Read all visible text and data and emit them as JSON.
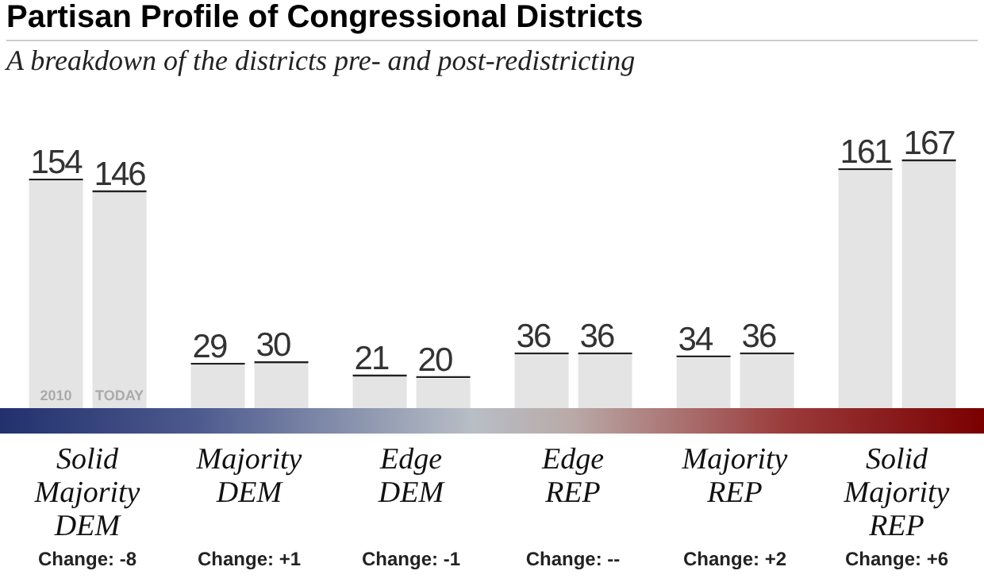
{
  "chart_data": {
    "type": "bar",
    "title": "Partisan Profile of Congressional Districts",
    "subtitle": "A breakdown of the districts pre- and post-redistricting",
    "categories": [
      "Solid Majority DEM",
      "Majority DEM",
      "Edge DEM",
      "Edge REP",
      "Majority REP",
      "Solid Majority REP"
    ],
    "series": [
      {
        "name": "2010",
        "color": "#e4e4e4",
        "values": [
          154,
          29,
          21,
          36,
          34,
          161
        ]
      },
      {
        "name": "TODAY",
        "color": "#e4e4e4",
        "values": [
          146,
          30,
          20,
          36,
          36,
          167
        ]
      }
    ],
    "data_labels": true,
    "grid": false,
    "legend": false,
    "annotations": [
      "Change: -8",
      "Change: +1",
      "Change: -1",
      "Change: --",
      "Change: +2",
      "Change: +6"
    ]
  }
}
